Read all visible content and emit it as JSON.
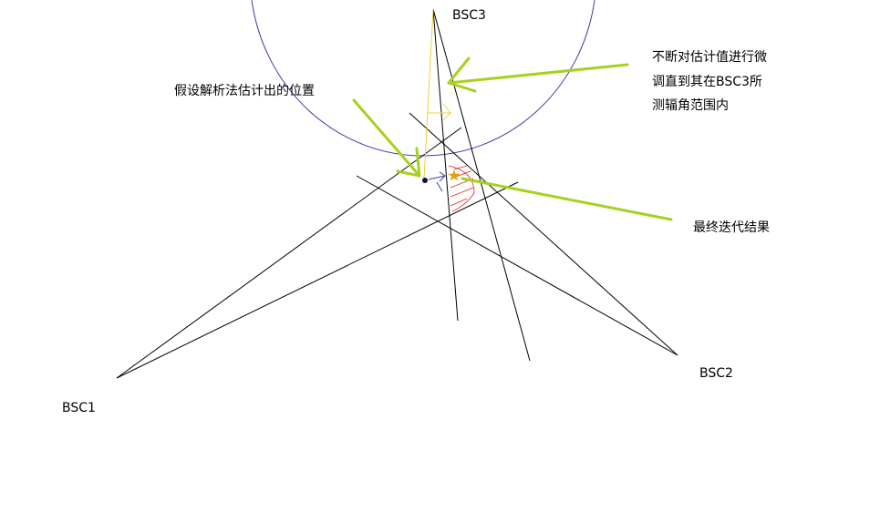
{
  "stations": {
    "bsc1": "BSC1",
    "bsc2": "BSC2",
    "bsc3": "BSC3"
  },
  "annotations": {
    "assumed_position": "假设解析法估计出的位置",
    "adjust_line1": "不断对估计值进行微",
    "adjust_line2": "调直到其在BSC3所",
    "adjust_line3": "测辐角范围内",
    "final_result": "最终迭代结果"
  },
  "colors": {
    "circle": "#3a3aa8",
    "lines": "#000000",
    "arrows": "#a6d11e",
    "iteration": "#f0d040",
    "star": "#e0a010",
    "hatch": "#e02020",
    "point": "#101040"
  }
}
